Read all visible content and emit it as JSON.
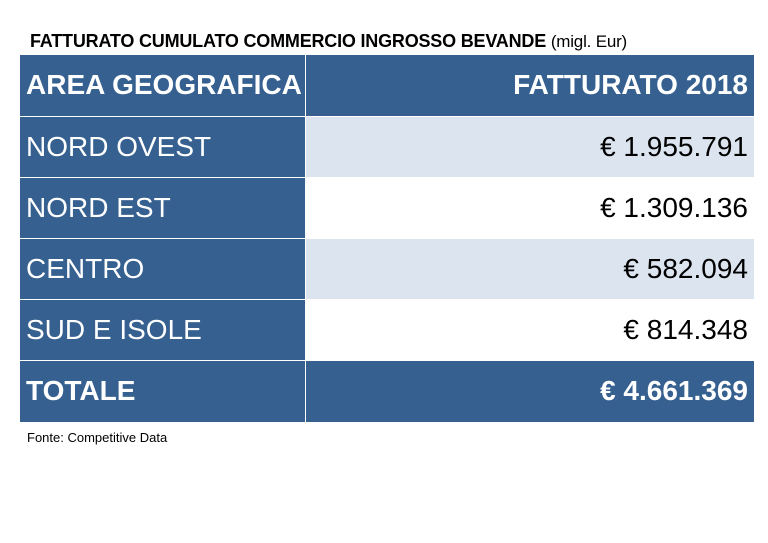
{
  "title": {
    "main": "FATTURATO CUMULATO COMMERCIO INGROSSO BEVANDE",
    "unit": "(migl. Eur)"
  },
  "table": {
    "headers": [
      "AREA GEOGRAFICA",
      "FATTURATO 2018"
    ],
    "rows": [
      {
        "area": "NORD OVEST",
        "value": "€ 1.955.791"
      },
      {
        "area": "NORD EST",
        "value": "€ 1.309.136"
      },
      {
        "area": "CENTRO",
        "value": "€ 582.094"
      },
      {
        "area": "SUD E ISOLE",
        "value": "€ 814.348"
      }
    ],
    "total": {
      "area": "TOTALE",
      "value": "€ 4.661.369"
    }
  },
  "source": "Fonte: Competitive Data",
  "colors": {
    "header_bg": "#35608f",
    "band_bg": "#dbe4ef",
    "text_light": "#ffffff"
  }
}
